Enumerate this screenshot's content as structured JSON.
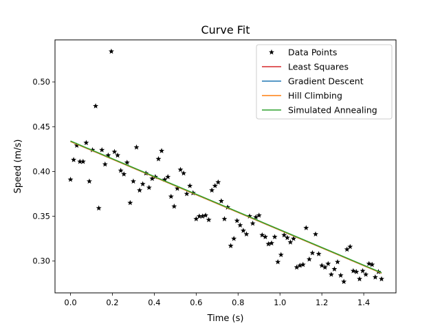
{
  "chart_data": {
    "type": "scatter",
    "title": "Curve Fit",
    "xlabel": "Time (s)",
    "ylabel": "Speed (m/s)",
    "xlim": [
      -0.074,
      1.554
    ],
    "ylim": [
      0.2645,
      0.5469
    ],
    "xticks": [
      0.0,
      0.2,
      0.4,
      0.6,
      0.8,
      1.0,
      1.2,
      1.4
    ],
    "xtick_labels": [
      "0.0",
      "0.2",
      "0.4",
      "0.6",
      "0.8",
      "1.0",
      "1.2",
      "1.4"
    ],
    "yticks": [
      0.3,
      0.35,
      0.4,
      0.45,
      0.5
    ],
    "ytick_labels": [
      "0.30",
      "0.35",
      "0.40",
      "0.45",
      "0.50"
    ],
    "grid": false,
    "legend_position": "top-right",
    "points": {
      "name": "Data Points",
      "color": "#000000",
      "marker": "star",
      "x": [
        0.0,
        0.015,
        0.03,
        0.045,
        0.06,
        0.075,
        0.09,
        0.105,
        0.12,
        0.135,
        0.15,
        0.165,
        0.18,
        0.195,
        0.21,
        0.225,
        0.24,
        0.255,
        0.27,
        0.285,
        0.3,
        0.315,
        0.33,
        0.345,
        0.36,
        0.375,
        0.39,
        0.405,
        0.42,
        0.435,
        0.45,
        0.465,
        0.48,
        0.495,
        0.51,
        0.525,
        0.54,
        0.555,
        0.57,
        0.585,
        0.6,
        0.615,
        0.63,
        0.645,
        0.66,
        0.675,
        0.69,
        0.705,
        0.72,
        0.735,
        0.75,
        0.765,
        0.78,
        0.795,
        0.81,
        0.825,
        0.84,
        0.855,
        0.87,
        0.885,
        0.9,
        0.915,
        0.93,
        0.945,
        0.96,
        0.975,
        0.99,
        1.005,
        1.02,
        1.035,
        1.05,
        1.065,
        1.08,
        1.095,
        1.11,
        1.125,
        1.14,
        1.155,
        1.17,
        1.185,
        1.2,
        1.215,
        1.23,
        1.245,
        1.26,
        1.275,
        1.29,
        1.305,
        1.32,
        1.335,
        1.35,
        1.365,
        1.38,
        1.395,
        1.41,
        1.425,
        1.44,
        1.455,
        1.47,
        1.485
      ],
      "y": [
        0.391,
        0.413,
        0.429,
        0.411,
        0.411,
        0.432,
        0.389,
        0.424,
        0.473,
        0.359,
        0.424,
        0.408,
        0.418,
        0.534,
        0.422,
        0.418,
        0.401,
        0.397,
        0.41,
        0.365,
        0.389,
        0.427,
        0.379,
        0.386,
        0.398,
        0.382,
        0.392,
        0.394,
        0.414,
        0.423,
        0.391,
        0.394,
        0.372,
        0.361,
        0.381,
        0.402,
        0.398,
        0.375,
        0.384,
        0.376,
        0.347,
        0.35,
        0.35,
        0.351,
        0.346,
        0.379,
        0.384,
        0.388,
        0.367,
        0.347,
        0.36,
        0.317,
        0.325,
        0.345,
        0.34,
        0.334,
        0.33,
        0.35,
        0.342,
        0.349,
        0.351,
        0.329,
        0.327,
        0.319,
        0.32,
        0.327,
        0.299,
        0.307,
        0.329,
        0.326,
        0.321,
        0.325,
        0.293,
        0.295,
        0.296,
        0.337,
        0.302,
        0.309,
        0.33,
        0.308,
        0.295,
        0.293,
        0.297,
        0.285,
        0.291,
        0.299,
        0.284,
        0.277,
        0.313,
        0.316,
        0.289,
        0.288,
        0.28,
        0.289,
        0.285,
        0.297,
        0.296,
        0.282,
        0.288,
        0.28
      ]
    },
    "lines": [
      {
        "name": "Least Squares",
        "color": "#d62728",
        "x": [
          0.0,
          1.485
        ],
        "y": [
          0.4335,
          0.2865
        ]
      },
      {
        "name": "Gradient Descent",
        "color": "#1f77b4",
        "x": [
          0.0,
          1.485
        ],
        "y": [
          0.4335,
          0.2865
        ]
      },
      {
        "name": "Hill Climbing",
        "color": "#ff7f0e",
        "x": [
          0.0,
          1.485
        ],
        "y": [
          0.4335,
          0.2865
        ]
      },
      {
        "name": "Simulated Annealing",
        "color": "#2ca02c",
        "x": [
          0.0,
          1.485
        ],
        "y": [
          0.434,
          0.287
        ]
      }
    ]
  }
}
